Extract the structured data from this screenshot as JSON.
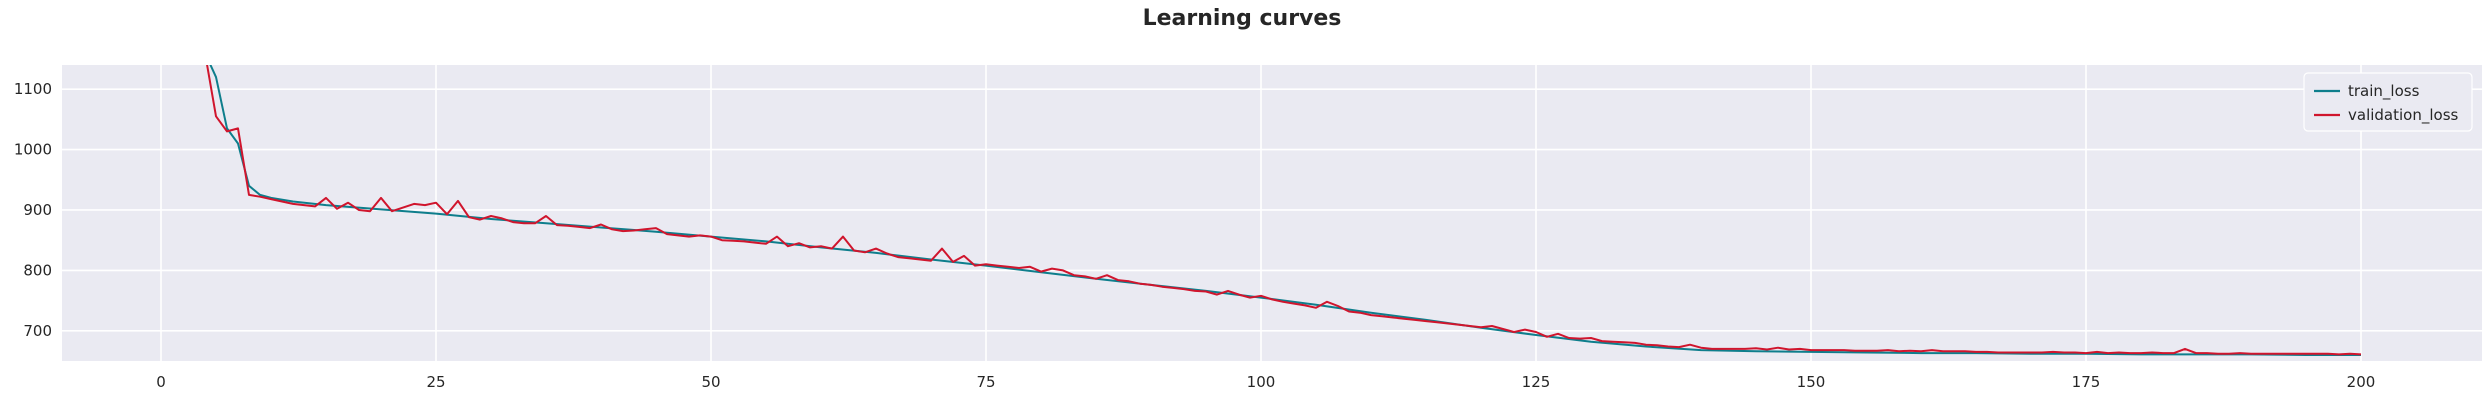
{
  "chart_data": {
    "type": "line",
    "title": "Learning curves",
    "xlabel": "",
    "ylabel": "",
    "xlim": [
      -9,
      211
    ],
    "ylim": [
      650,
      1140
    ],
    "xticks": [
      0,
      25,
      50,
      75,
      100,
      125,
      150,
      175,
      200
    ],
    "yticks": [
      700,
      800,
      900,
      1000,
      1100
    ],
    "grid": true,
    "legend_position": "top-right",
    "colors": {
      "background": "#eaeaf2",
      "grid": "#ffffff",
      "train": "#0e7e8c",
      "validation": "#d0152d"
    },
    "series": [
      {
        "name": "train_loss",
        "color": "#0e7e8c",
        "points": [
          [
            4,
            1160
          ],
          [
            5,
            1120
          ],
          [
            6,
            1035
          ],
          [
            7,
            1010
          ],
          [
            8,
            940
          ],
          [
            9,
            925
          ],
          [
            10,
            920
          ],
          [
            12,
            914
          ],
          [
            15,
            908
          ],
          [
            20,
            901
          ],
          [
            25,
            894
          ],
          [
            30,
            885
          ],
          [
            35,
            878
          ],
          [
            40,
            871
          ],
          [
            45,
            864
          ],
          [
            50,
            856
          ],
          [
            55,
            848
          ],
          [
            60,
            838
          ],
          [
            65,
            829
          ],
          [
            70,
            818
          ],
          [
            75,
            808
          ],
          [
            80,
            797
          ],
          [
            85,
            786
          ],
          [
            90,
            776
          ],
          [
            95,
            766
          ],
          [
            100,
            755
          ],
          [
            105,
            743
          ],
          [
            110,
            730
          ],
          [
            115,
            718
          ],
          [
            120,
            705
          ],
          [
            125,
            693
          ],
          [
            130,
            682
          ],
          [
            135,
            674
          ],
          [
            140,
            668
          ],
          [
            145,
            666
          ],
          [
            150,
            665
          ],
          [
            155,
            664
          ],
          [
            160,
            663
          ],
          [
            165,
            663
          ],
          [
            170,
            662
          ],
          [
            175,
            662
          ],
          [
            180,
            661
          ],
          [
            185,
            661
          ],
          [
            190,
            661
          ],
          [
            195,
            660
          ],
          [
            200,
            660
          ]
        ]
      },
      {
        "name": "validation_loss",
        "color": "#d0152d",
        "points": [
          [
            4,
            1160
          ],
          [
            5,
            1055
          ],
          [
            6,
            1030
          ],
          [
            7,
            1035
          ],
          [
            8,
            925
          ],
          [
            9,
            922
          ],
          [
            10,
            918
          ],
          [
            11,
            914
          ],
          [
            12,
            910
          ],
          [
            13,
            908
          ],
          [
            14,
            906
          ],
          [
            15,
            920
          ],
          [
            16,
            902
          ],
          [
            17,
            912
          ],
          [
            18,
            900
          ],
          [
            19,
            898
          ],
          [
            20,
            920
          ],
          [
            21,
            898
          ],
          [
            22,
            904
          ],
          [
            23,
            910
          ],
          [
            24,
            908
          ],
          [
            25,
            912
          ],
          [
            26,
            893
          ],
          [
            27,
            915
          ],
          [
            28,
            888
          ],
          [
            29,
            884
          ],
          [
            30,
            890
          ],
          [
            31,
            886
          ],
          [
            32,
            880
          ],
          [
            33,
            878
          ],
          [
            34,
            878
          ],
          [
            35,
            890
          ],
          [
            36,
            875
          ],
          [
            37,
            874
          ],
          [
            38,
            872
          ],
          [
            39,
            870
          ],
          [
            40,
            876
          ],
          [
            41,
            868
          ],
          [
            42,
            865
          ],
          [
            43,
            866
          ],
          [
            44,
            868
          ],
          [
            45,
            870
          ],
          [
            46,
            860
          ],
          [
            47,
            858
          ],
          [
            48,
            856
          ],
          [
            49,
            858
          ],
          [
            50,
            856
          ],
          [
            51,
            850
          ],
          [
            52,
            849
          ],
          [
            53,
            848
          ],
          [
            54,
            846
          ],
          [
            55,
            844
          ],
          [
            56,
            856
          ],
          [
            57,
            840
          ],
          [
            58,
            845
          ],
          [
            59,
            838
          ],
          [
            60,
            840
          ],
          [
            61,
            836
          ],
          [
            62,
            856
          ],
          [
            63,
            833
          ],
          [
            64,
            830
          ],
          [
            65,
            836
          ],
          [
            66,
            828
          ],
          [
            67,
            822
          ],
          [
            68,
            820
          ],
          [
            69,
            818
          ],
          [
            70,
            816
          ],
          [
            71,
            836
          ],
          [
            72,
            814
          ],
          [
            73,
            824
          ],
          [
            74,
            808
          ],
          [
            75,
            810
          ],
          [
            76,
            808
          ],
          [
            77,
            806
          ],
          [
            78,
            804
          ],
          [
            79,
            806
          ],
          [
            80,
            798
          ],
          [
            81,
            803
          ],
          [
            82,
            800
          ],
          [
            83,
            792
          ],
          [
            84,
            790
          ],
          [
            85,
            786
          ],
          [
            86,
            792
          ],
          [
            87,
            784
          ],
          [
            88,
            782
          ],
          [
            89,
            778
          ],
          [
            90,
            776
          ],
          [
            91,
            773
          ],
          [
            92,
            771
          ],
          [
            93,
            769
          ],
          [
            94,
            766
          ],
          [
            95,
            765
          ],
          [
            96,
            760
          ],
          [
            97,
            766
          ],
          [
            98,
            760
          ],
          [
            99,
            755
          ],
          [
            100,
            758
          ],
          [
            101,
            752
          ],
          [
            102,
            748
          ],
          [
            103,
            745
          ],
          [
            104,
            742
          ],
          [
            105,
            738
          ],
          [
            106,
            748
          ],
          [
            107,
            741
          ],
          [
            108,
            732
          ],
          [
            109,
            730
          ],
          [
            110,
            726
          ],
          [
            111,
            724
          ],
          [
            112,
            722
          ],
          [
            113,
            720
          ],
          [
            114,
            718
          ],
          [
            115,
            716
          ],
          [
            116,
            714
          ],
          [
            117,
            712
          ],
          [
            118,
            710
          ],
          [
            119,
            708
          ],
          [
            120,
            706
          ],
          [
            121,
            708
          ],
          [
            122,
            703
          ],
          [
            123,
            698
          ],
          [
            124,
            702
          ],
          [
            125,
            698
          ],
          [
            126,
            690
          ],
          [
            127,
            695
          ],
          [
            128,
            688
          ],
          [
            129,
            687
          ],
          [
            130,
            688
          ],
          [
            131,
            683
          ],
          [
            132,
            682
          ],
          [
            133,
            681
          ],
          [
            134,
            680
          ],
          [
            135,
            677
          ],
          [
            136,
            676
          ],
          [
            137,
            674
          ],
          [
            138,
            673
          ],
          [
            139,
            677
          ],
          [
            140,
            672
          ],
          [
            141,
            670
          ],
          [
            142,
            670
          ],
          [
            143,
            670
          ],
          [
            144,
            670
          ],
          [
            145,
            671
          ],
          [
            146,
            669
          ],
          [
            147,
            672
          ],
          [
            148,
            669
          ],
          [
            149,
            670
          ],
          [
            150,
            668
          ],
          [
            151,
            668
          ],
          [
            152,
            668
          ],
          [
            153,
            668
          ],
          [
            154,
            667
          ],
          [
            155,
            667
          ],
          [
            156,
            667
          ],
          [
            157,
            668
          ],
          [
            158,
            666
          ],
          [
            159,
            667
          ],
          [
            160,
            666
          ],
          [
            161,
            668
          ],
          [
            162,
            666
          ],
          [
            163,
            666
          ],
          [
            164,
            666
          ],
          [
            165,
            665
          ],
          [
            166,
            665
          ],
          [
            167,
            664
          ],
          [
            168,
            664
          ],
          [
            169,
            664
          ],
          [
            170,
            664
          ],
          [
            171,
            664
          ],
          [
            172,
            665
          ],
          [
            173,
            664
          ],
          [
            174,
            664
          ],
          [
            175,
            663
          ],
          [
            176,
            665
          ],
          [
            177,
            663
          ],
          [
            178,
            664
          ],
          [
            179,
            663
          ],
          [
            180,
            663
          ],
          [
            181,
            664
          ],
          [
            182,
            663
          ],
          [
            183,
            663
          ],
          [
            184,
            670
          ],
          [
            185,
            663
          ],
          [
            186,
            663
          ],
          [
            187,
            662
          ],
          [
            188,
            662
          ],
          [
            189,
            663
          ],
          [
            190,
            662
          ],
          [
            191,
            662
          ],
          [
            192,
            662
          ],
          [
            193,
            662
          ],
          [
            194,
            662
          ],
          [
            195,
            662
          ],
          [
            196,
            662
          ],
          [
            197,
            662
          ],
          [
            198,
            661
          ],
          [
            199,
            662
          ],
          [
            200,
            661
          ]
        ]
      }
    ]
  }
}
